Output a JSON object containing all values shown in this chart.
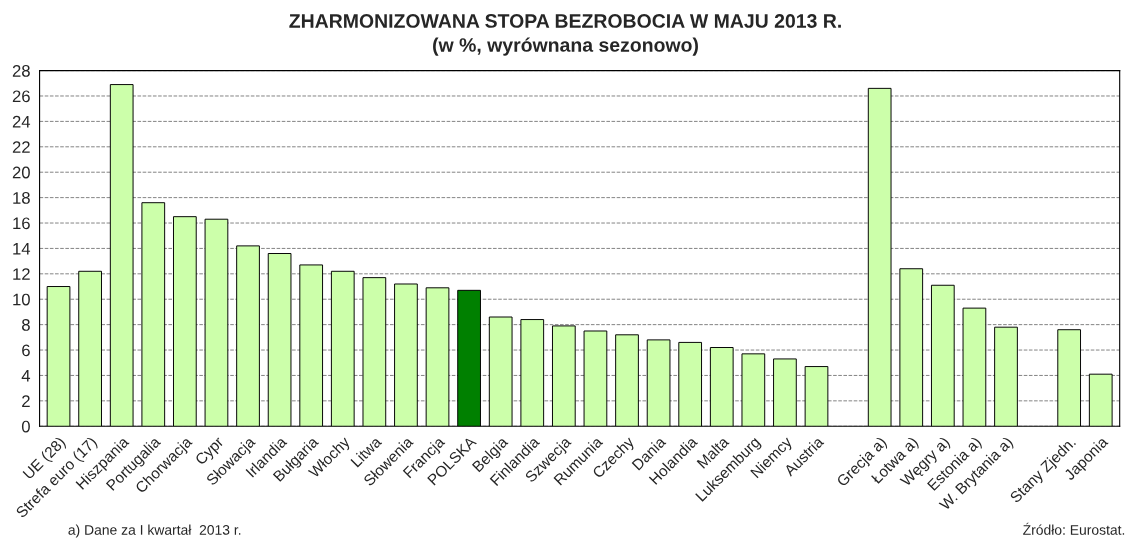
{
  "chart_data": {
    "type": "bar",
    "title": "ZHARMONIZOWANA STOPA BEZROBOCIA W MAJU 2013 R.\n(w %, wyrównana sezonowo)",
    "categories": [
      "UE (28)",
      "Strefa euro (17)",
      "Hiszpania",
      "Portugalia",
      "Chorwacja",
      "Cypr",
      "Słowacja",
      "Irlandia",
      "Bułgaria",
      "Włochy",
      "Litwa",
      "Słowenia",
      "Francja",
      "POLSKA",
      "Belgia",
      "Finlandia",
      "Szwecja",
      "Rumunia",
      "Czechy",
      "Dania",
      "Holandia",
      "Malta",
      "Luksemburg",
      "Niemcy",
      "Austria",
      null,
      "Grecja a)",
      "Łotwa a)",
      "Węgry a)",
      "Estonia a)",
      "W. Brytania a)",
      null,
      "Stany Zjedn.",
      "Japonia"
    ],
    "values": [
      11.0,
      12.2,
      26.9,
      17.6,
      16.5,
      16.3,
      14.2,
      13.6,
      12.7,
      12.2,
      11.7,
      11.2,
      10.9,
      10.7,
      8.6,
      8.4,
      7.9,
      7.5,
      7.2,
      6.8,
      6.6,
      6.2,
      5.7,
      5.3,
      4.7,
      null,
      26.6,
      12.4,
      11.1,
      9.3,
      7.8,
      null,
      7.6,
      4.1
    ],
    "colors": [
      "#ccffaa",
      "#ccffaa",
      "#ccffaa",
      "#ccffaa",
      "#ccffaa",
      "#ccffaa",
      "#ccffaa",
      "#ccffaa",
      "#ccffaa",
      "#ccffaa",
      "#ccffaa",
      "#ccffaa",
      "#ccffaa",
      "#008000",
      "#ccffaa",
      "#ccffaa",
      "#ccffaa",
      "#ccffaa",
      "#ccffaa",
      "#ccffaa",
      "#ccffaa",
      "#ccffaa",
      "#ccffaa",
      "#ccffaa",
      "#ccffaa",
      "#ccffaa",
      "#ccffaa",
      "#ccffaa",
      "#ccffaa",
      "#ccffaa",
      "#ccffaa",
      "#ccffaa",
      "#ccffaa",
      "#ccffaa"
    ],
    "ylim": [
      0,
      28
    ],
    "yticks": [
      0,
      2,
      4,
      6,
      8,
      10,
      12,
      14,
      16,
      18,
      20,
      22,
      24,
      26,
      28
    ],
    "grid": "y",
    "annotations": [
      "a) Dane za I kwartał  2013 r.",
      "Źródło: Eurostat."
    ]
  }
}
